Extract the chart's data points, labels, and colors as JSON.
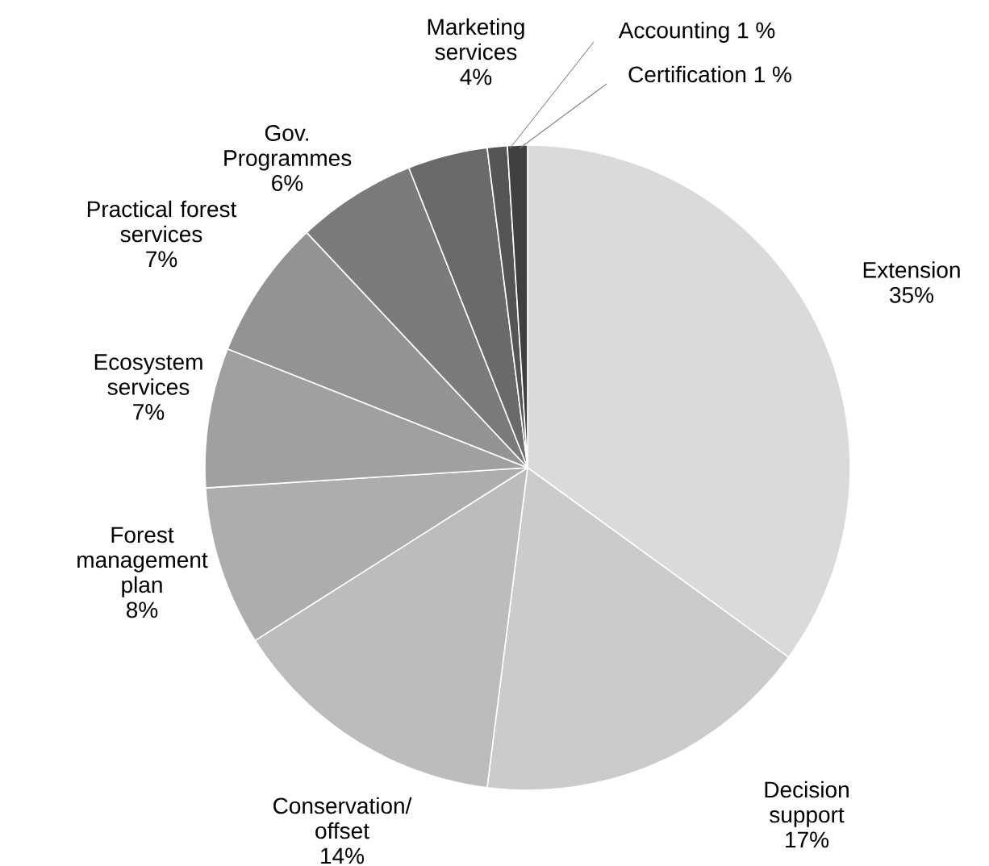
{
  "chart_data": {
    "type": "pie",
    "categories": [
      "Extension",
      "Decision support",
      "Conservation/ offset",
      "Forest management plan",
      "Ecosystem services",
      "Practical forest services",
      "Gov. Programmes",
      "Marketing services",
      "Accounting",
      "Certification"
    ],
    "values": [
      35,
      17,
      14,
      8,
      7,
      7,
      6,
      4,
      1,
      1
    ],
    "value_labels": [
      "35%",
      "17%",
      "14%",
      "8%",
      "7%",
      "7%",
      "6%",
      "4%",
      "1 %",
      "1 %"
    ],
    "colors": [
      "#dadada",
      "#cbcbcb",
      "#bcbcbc",
      "#adadad",
      "#a0a0a0",
      "#939393",
      "#7b7b7b",
      "#6a6a6a",
      "#555555",
      "#404040"
    ]
  }
}
